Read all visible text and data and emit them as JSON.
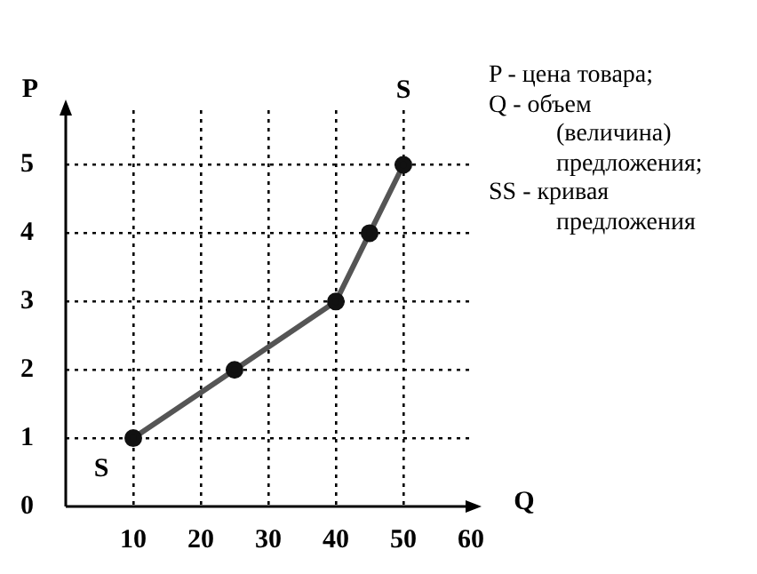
{
  "chart_data": {
    "type": "line",
    "xlabel": "Q",
    "ylabel": "P",
    "x": [
      10,
      25,
      40,
      45,
      50
    ],
    "series": [
      {
        "color": "#555555",
        "values": [
          1,
          2,
          3,
          4,
          5
        ]
      }
    ],
    "xlim": [
      0,
      60
    ],
    "xticks": [
      10,
      20,
      30,
      40,
      50,
      60
    ],
    "ylim": [
      0,
      5.8
    ],
    "yticks": [
      0,
      1,
      2,
      3,
      4,
      5
    ],
    "grid": true,
    "legend": false,
    "marker": "circle",
    "line_style": "solid",
    "annotations": [
      {
        "text": "S",
        "x": 10,
        "y": 1
      },
      {
        "text": "S",
        "x": 50,
        "y": 5
      },
      "P - цена товара;",
      "Q - объем (величина) предложения;",
      "SS - кривая предложения"
    ]
  }
}
